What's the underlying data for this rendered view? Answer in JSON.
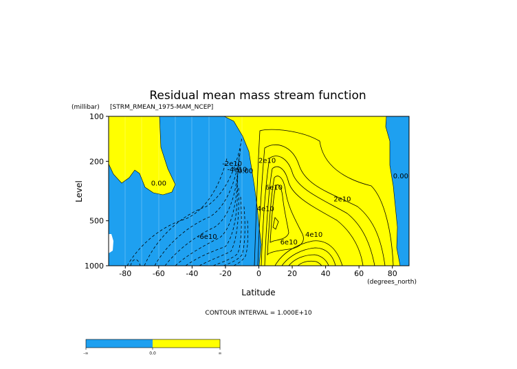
{
  "chart_data": {
    "type": "contour",
    "title": "Residual mean mass stream function",
    "dataset_label": "[STRM_RMEAN_1975-MAM_NCEP]",
    "xlabel": "Latitude",
    "xunits": "(degrees_north)",
    "ylabel": "Level",
    "yunits": "(millibar)",
    "xlim": [
      -90,
      90
    ],
    "ylim": [
      1000,
      100
    ],
    "y_scale": "log",
    "x_ticks": [
      -80,
      -60,
      -40,
      -20,
      0,
      20,
      40,
      60,
      80
    ],
    "y_ticks": [
      100,
      200,
      500,
      1000
    ],
    "contour_interval_text": "CONTOUR INTERVAL = 1.000E+10",
    "contour_labels": [
      {
        "text": "0.00",
        "lat": -60,
        "lev": 290
      },
      {
        "text": "-2e10",
        "lat": -16,
        "lev": 215
      },
      {
        "text": "-4e10",
        "lat": -13,
        "lev": 235
      },
      {
        "text": "-6e10",
        "lat": -31,
        "lev": 660
      },
      {
        "text": "0.00",
        "lat": -8,
        "lev": 240
      },
      {
        "text": "2e10",
        "lat": 5,
        "lev": 205
      },
      {
        "text": "4e10",
        "lat": 4,
        "lev": 430
      },
      {
        "text": "6e10",
        "lat": 9,
        "lev": 310
      },
      {
        "text": "2e10",
        "lat": 50,
        "lev": 370
      },
      {
        "text": "4e10",
        "lat": 33,
        "lev": 640
      },
      {
        "text": "6e10",
        "lat": 18,
        "lev": 720
      },
      {
        "text": "0.00",
        "lat": 85,
        "lev": 260
      }
    ],
    "colorbar": {
      "labels": [
        "-∞",
        "0.0",
        "∞"
      ],
      "colors": {
        "negative": "#1ea0f0",
        "positive": "#ffff00"
      }
    }
  }
}
